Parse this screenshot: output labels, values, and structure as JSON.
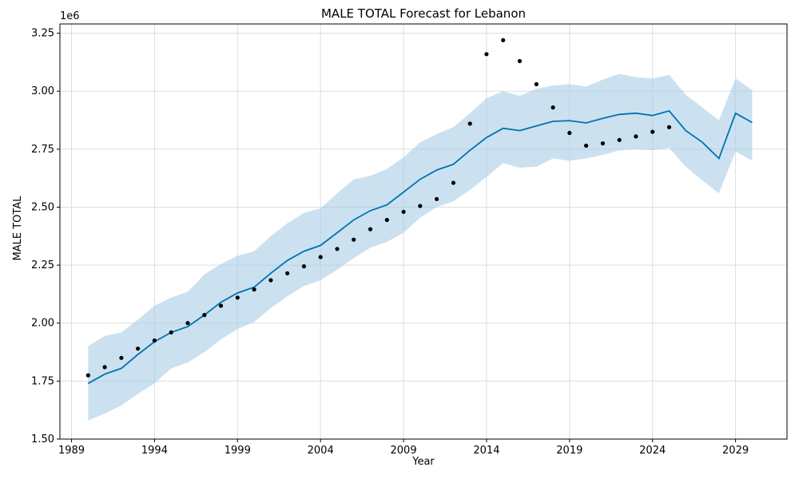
{
  "chart_data": {
    "type": "line",
    "title": "MALE TOTAL Forecast for Lebanon",
    "xlabel": "Year",
    "ylabel": "MALE TOTAL",
    "y_offset_label": "1e6",
    "xlim": [
      1988.3,
      2032.1
    ],
    "ylim": [
      1.5,
      3.29
    ],
    "x_ticks": [
      1989,
      1994,
      1999,
      2004,
      2009,
      2014,
      2019,
      2024,
      2029
    ],
    "x_tick_labels": [
      "1989",
      "1994",
      "1999",
      "2004",
      "2009",
      "2014",
      "2019",
      "2024",
      "2029"
    ],
    "y_ticks": [
      1.5,
      1.75,
      2.0,
      2.25,
      2.5,
      2.75,
      3.0,
      3.25
    ],
    "y_tick_labels": [
      "1.50",
      "1.75",
      "2.00",
      "2.25",
      "2.50",
      "2.75",
      "3.00",
      "3.25"
    ],
    "grid": true,
    "colors": {
      "forecast": "#0072b2",
      "interval": "#a8cde6",
      "observed": "#000000",
      "grid": "#dddddd"
    },
    "forecast": {
      "x": [
        1990,
        1991,
        1992,
        1993,
        1994,
        1995,
        1996,
        1997,
        1998,
        1999,
        2000,
        2001,
        2002,
        2003,
        2004,
        2005,
        2006,
        2007,
        2008,
        2009,
        2010,
        2011,
        2012,
        2013,
        2014,
        2015,
        2016,
        2017,
        2018,
        2019,
        2020,
        2021,
        2022,
        2023,
        2024,
        2025,
        2026,
        2027,
        2028,
        2029,
        2030
      ],
      "yhat": [
        1.74,
        1.78,
        1.805,
        1.865,
        1.92,
        1.96,
        1.985,
        2.035,
        2.09,
        2.13,
        2.155,
        2.215,
        2.27,
        2.31,
        2.335,
        2.39,
        2.445,
        2.485,
        2.51,
        2.565,
        2.62,
        2.66,
        2.685,
        2.745,
        2.8,
        2.84,
        2.83,
        2.85,
        2.87,
        2.873,
        2.863,
        2.883,
        2.9,
        2.905,
        2.895,
        2.915,
        2.83,
        2.78,
        2.71,
        2.905,
        2.865
      ],
      "yhat_lower": [
        1.58,
        1.61,
        1.645,
        1.695,
        1.74,
        1.805,
        1.83,
        1.875,
        1.93,
        1.975,
        2.005,
        2.065,
        2.115,
        2.16,
        2.185,
        2.23,
        2.28,
        2.325,
        2.35,
        2.39,
        2.455,
        2.5,
        2.525,
        2.575,
        2.63,
        2.69,
        2.67,
        2.675,
        2.71,
        2.7,
        2.71,
        2.725,
        2.745,
        2.75,
        2.745,
        2.755,
        2.675,
        2.615,
        2.56,
        2.74,
        2.7
      ],
      "yhat_upper": [
        1.9,
        1.945,
        1.96,
        2.015,
        2.075,
        2.11,
        2.135,
        2.21,
        2.255,
        2.29,
        2.31,
        2.375,
        2.43,
        2.475,
        2.495,
        2.56,
        2.62,
        2.635,
        2.665,
        2.715,
        2.78,
        2.815,
        2.845,
        2.905,
        2.97,
        3.0,
        2.98,
        3.01,
        3.025,
        3.03,
        3.02,
        3.05,
        3.075,
        3.06,
        3.055,
        3.07,
        2.985,
        2.93,
        2.875,
        3.055,
        3.005
      ]
    },
    "observed": {
      "x": [
        1990,
        1991,
        1992,
        1993,
        1994,
        1995,
        1996,
        1997,
        1998,
        1999,
        2000,
        2001,
        2002,
        2003,
        2004,
        2005,
        2006,
        2007,
        2008,
        2009,
        2010,
        2011,
        2012,
        2013,
        2014,
        2015,
        2016,
        2017,
        2018,
        2019,
        2020,
        2021,
        2022,
        2023,
        2024,
        2025
      ],
      "y": [
        1.775,
        1.81,
        1.85,
        1.89,
        1.925,
        1.96,
        2.0,
        2.035,
        2.075,
        2.11,
        2.145,
        2.185,
        2.215,
        2.245,
        2.285,
        2.32,
        2.36,
        2.405,
        2.445,
        2.48,
        2.505,
        2.535,
        2.605,
        2.86,
        3.16,
        3.22,
        3.13,
        3.03,
        2.93,
        2.82,
        2.765,
        2.775,
        2.79,
        2.805,
        2.825,
        2.845
      ]
    }
  }
}
